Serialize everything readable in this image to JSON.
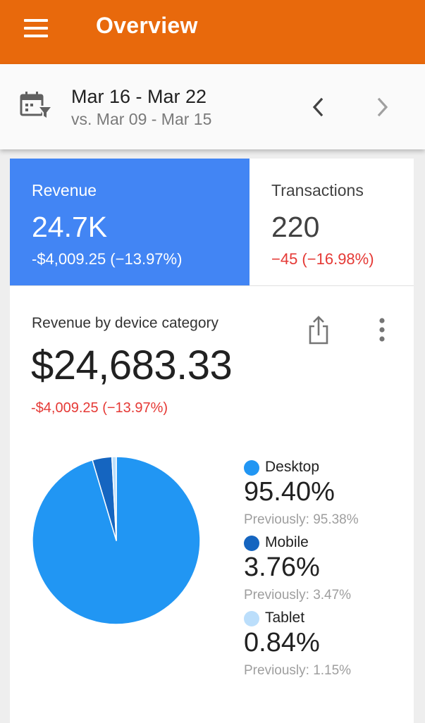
{
  "appbar": {
    "title": "Overview",
    "menu_icon": "hamburger-menu-icon"
  },
  "date_range": {
    "current": "Mar 16 - Mar 22",
    "comparison": "vs. Mar 09 - Mar 15",
    "calendar_icon": "calendar-filter-icon",
    "prev_icon": "chevron-left-icon",
    "next_icon": "chevron-right-icon"
  },
  "kpis": [
    {
      "label": "Revenue",
      "value": "24.7K",
      "change": "-$4,009.25 (−13.97%)",
      "selected": true,
      "color": "#4285f4"
    },
    {
      "label": "Transactions",
      "value": "220",
      "change": "−45 (−16.98%)",
      "selected": false,
      "color": "#e53935"
    }
  ],
  "card": {
    "title": "Revenue by device category",
    "total": "$24,683.33",
    "change": "-$4,009.25 (−13.97%)",
    "share_icon": "share-icon",
    "more_icon": "more-vert-icon"
  },
  "chart_data": {
    "type": "pie",
    "title": "Revenue by device category",
    "slices": [
      {
        "label": "Desktop",
        "value": 95.4,
        "display": "95.40%",
        "previous": "Previously: 95.38%",
        "color": "#2196f3"
      },
      {
        "label": "Mobile",
        "value": 3.76,
        "display": "3.76%",
        "previous": "Previously: 3.47%",
        "color": "#1565c0"
      },
      {
        "label": "Tablet",
        "value": 0.84,
        "display": "0.84%",
        "previous": "Previously: 1.15%",
        "color": "#bbdefb"
      }
    ],
    "legend_position": "right"
  },
  "colors": {
    "appbar": "#e8690c",
    "selected_kpi": "#4285f4",
    "negative": "#e53935"
  }
}
